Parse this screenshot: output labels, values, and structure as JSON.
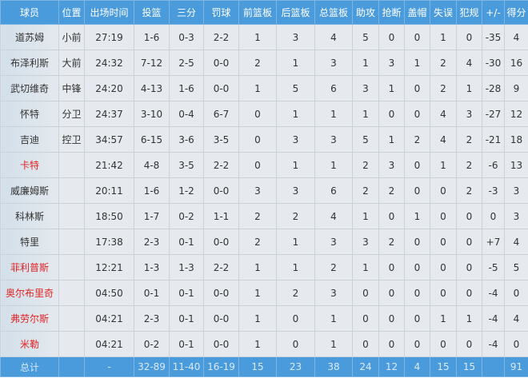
{
  "colors": {
    "header": "#4a9bdc",
    "bench_highlight": "#e02424",
    "text": "#333333"
  },
  "columns": [
    "球员",
    "位置",
    "出场时间",
    "投篮",
    "三分",
    "罚球",
    "前篮板",
    "后篮板",
    "总篮板",
    "助攻",
    "抢断",
    "盖帽",
    "失误",
    "犯规",
    "+/-",
    "得分"
  ],
  "rows": [
    {
      "highlight": false,
      "cells": [
        "道苏姆",
        "小前",
        "27:19",
        "1-6",
        "0-3",
        "2-2",
        "1",
        "3",
        "4",
        "5",
        "0",
        "0",
        "1",
        "0",
        "-35",
        "4"
      ]
    },
    {
      "highlight": false,
      "cells": [
        "布泽利斯",
        "大前",
        "24:32",
        "7-12",
        "2-5",
        "0-0",
        "2",
        "1",
        "3",
        "1",
        "3",
        "1",
        "2",
        "4",
        "-30",
        "16"
      ]
    },
    {
      "highlight": false,
      "cells": [
        "武切维奇",
        "中锋",
        "24:20",
        "4-13",
        "1-6",
        "0-0",
        "1",
        "5",
        "6",
        "3",
        "1",
        "0",
        "2",
        "1",
        "-28",
        "9"
      ]
    },
    {
      "highlight": false,
      "cells": [
        "怀特",
        "分卫",
        "24:37",
        "3-10",
        "0-4",
        "6-7",
        "0",
        "1",
        "1",
        "1",
        "0",
        "0",
        "4",
        "3",
        "-27",
        "12"
      ]
    },
    {
      "highlight": false,
      "cells": [
        "吉迪",
        "控卫",
        "34:57",
        "6-15",
        "3-6",
        "3-5",
        "0",
        "3",
        "3",
        "5",
        "1",
        "2",
        "4",
        "2",
        "-21",
        "18"
      ]
    },
    {
      "highlight": true,
      "cells": [
        "卡特",
        "",
        "21:42",
        "4-8",
        "3-5",
        "2-2",
        "0",
        "1",
        "1",
        "2",
        "3",
        "0",
        "1",
        "2",
        "-6",
        "13"
      ]
    },
    {
      "highlight": false,
      "cells": [
        "威廉姆斯",
        "",
        "20:11",
        "1-6",
        "1-2",
        "0-0",
        "3",
        "3",
        "6",
        "2",
        "2",
        "0",
        "0",
        "2",
        "-3",
        "3"
      ]
    },
    {
      "highlight": false,
      "cells": [
        "科林斯",
        "",
        "18:50",
        "1-7",
        "0-2",
        "1-1",
        "2",
        "2",
        "4",
        "1",
        "0",
        "1",
        "0",
        "0",
        "0",
        "3"
      ]
    },
    {
      "highlight": false,
      "cells": [
        "特里",
        "",
        "17:38",
        "2-3",
        "0-1",
        "0-0",
        "2",
        "1",
        "3",
        "3",
        "2",
        "0",
        "0",
        "0",
        "+7",
        "4"
      ]
    },
    {
      "highlight": true,
      "cells": [
        "菲利普斯",
        "",
        "12:21",
        "1-3",
        "1-3",
        "2-2",
        "1",
        "1",
        "2",
        "1",
        "0",
        "0",
        "0",
        "0",
        "-5",
        "5"
      ]
    },
    {
      "highlight": true,
      "cells": [
        "奥尔布里奇",
        "",
        "04:50",
        "0-1",
        "0-1",
        "0-0",
        "1",
        "2",
        "3",
        "0",
        "0",
        "0",
        "0",
        "0",
        "-4",
        "0"
      ]
    },
    {
      "highlight": true,
      "cells": [
        "弗劳尔斯",
        "",
        "04:21",
        "2-3",
        "0-1",
        "0-0",
        "1",
        "0",
        "1",
        "0",
        "0",
        "0",
        "1",
        "1",
        "-4",
        "4"
      ]
    },
    {
      "highlight": true,
      "cells": [
        "米勒",
        "",
        "04:21",
        "0-2",
        "0-1",
        "0-0",
        "1",
        "0",
        "1",
        "0",
        "0",
        "0",
        "0",
        "0",
        "-4",
        "0"
      ]
    }
  ],
  "total": [
    "总计",
    "",
    "-",
    "32-89",
    "11-40",
    "16-19",
    "15",
    "23",
    "38",
    "24",
    "12",
    "4",
    "15",
    "15",
    "",
    "91"
  ]
}
